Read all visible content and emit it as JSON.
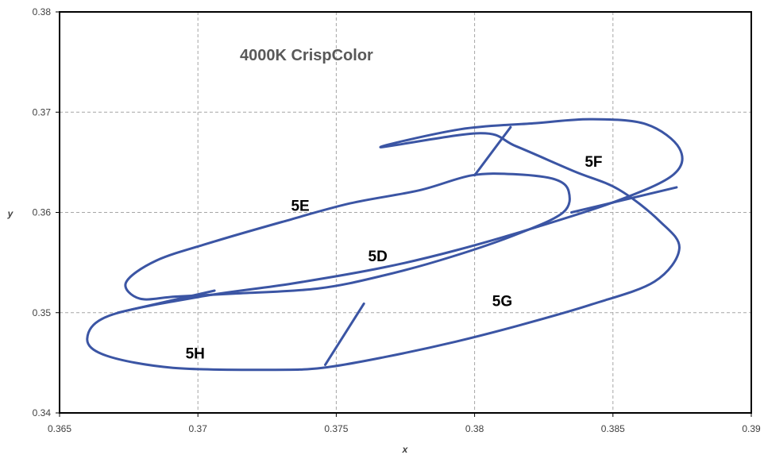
{
  "chart_data": {
    "type": "line",
    "title": "4000K CrispColor",
    "xlabel": "x",
    "ylabel": "y",
    "xlim": [
      0.365,
      0.39
    ],
    "ylim": [
      0.34,
      0.38
    ],
    "x_ticks": [
      "0.365",
      "0.37",
      "0.375",
      "0.38",
      "0.385",
      "0.39"
    ],
    "y_ticks": [
      "0.34",
      "0.35",
      "0.36",
      "0.37",
      "0.38"
    ],
    "grid": true,
    "line_color": "#3b55a4",
    "series": [
      {
        "id": "outer-ellipse",
        "closed": true,
        "points": [
          [
            0.3766,
            0.3665
          ],
          [
            0.3795,
            0.3683
          ],
          [
            0.3822,
            0.3689
          ],
          [
            0.3842,
            0.3693
          ],
          [
            0.3862,
            0.3688
          ],
          [
            0.3874,
            0.3664
          ],
          [
            0.3872,
            0.3638
          ],
          [
            0.3852,
            0.3612
          ],
          [
            0.3822,
            0.3585
          ],
          [
            0.3793,
            0.3562
          ],
          [
            0.3767,
            0.3545
          ],
          [
            0.3734,
            0.3529
          ],
          [
            0.3701,
            0.3516
          ],
          [
            0.3668,
            0.3497
          ],
          [
            0.366,
            0.3474
          ],
          [
            0.3667,
            0.3457
          ],
          [
            0.3691,
            0.3445
          ],
          [
            0.3726,
            0.3443
          ],
          [
            0.3745,
            0.3445
          ],
          [
            0.3768,
            0.3456
          ],
          [
            0.3793,
            0.3471
          ],
          [
            0.3817,
            0.3488
          ],
          [
            0.3842,
            0.3508
          ],
          [
            0.3865,
            0.3531
          ],
          [
            0.3874,
            0.3564
          ],
          [
            0.3867,
            0.3591
          ],
          [
            0.3852,
            0.3623
          ],
          [
            0.3836,
            0.3641
          ],
          [
            0.3815,
            0.3666
          ],
          [
            0.3802,
            0.3679
          ]
        ]
      },
      {
        "id": "inner-ellipse",
        "closed": true,
        "points": [
          [
            0.3755,
            0.3609
          ],
          [
            0.378,
            0.3622
          ],
          [
            0.3799,
            0.3637
          ],
          [
            0.3815,
            0.3638
          ],
          [
            0.3829,
            0.3633
          ],
          [
            0.3834,
            0.3621
          ],
          [
            0.3832,
            0.36
          ],
          [
            0.3816,
            0.3579
          ],
          [
            0.3792,
            0.3556
          ],
          [
            0.3767,
            0.3537
          ],
          [
            0.3743,
            0.3524
          ],
          [
            0.3713,
            0.3519
          ],
          [
            0.3692,
            0.3516
          ],
          [
            0.3679,
            0.3514
          ],
          [
            0.3674,
            0.353
          ],
          [
            0.3685,
            0.3552
          ],
          [
            0.3706,
            0.3571
          ],
          [
            0.3731,
            0.3591
          ]
        ]
      },
      {
        "id": "divider-5e-5f",
        "closed": false,
        "points": [
          [
            0.38,
            0.3637
          ],
          [
            0.3813,
            0.3685
          ]
        ]
      },
      {
        "id": "divider-5f-5g",
        "closed": false,
        "points": [
          [
            0.3835,
            0.36
          ],
          [
            0.3873,
            0.3625
          ]
        ]
      },
      {
        "id": "divider-5g-5h",
        "closed": false,
        "points": [
          [
            0.376,
            0.3509
          ],
          [
            0.3746,
            0.3448
          ]
        ]
      },
      {
        "id": "divider-5h-5e",
        "closed": false,
        "points": [
          [
            0.3671,
            0.35
          ],
          [
            0.3706,
            0.3522
          ]
        ]
      }
    ],
    "annotations": [
      {
        "text": "5D",
        "x": 0.3765,
        "y": 0.3557
      },
      {
        "text": "5E",
        "x": 0.3737,
        "y": 0.3607
      },
      {
        "text": "5F",
        "x": 0.3843,
        "y": 0.3651
      },
      {
        "text": "5G",
        "x": 0.381,
        "y": 0.3512
      },
      {
        "text": "5H",
        "x": 0.3699,
        "y": 0.346
      }
    ]
  }
}
